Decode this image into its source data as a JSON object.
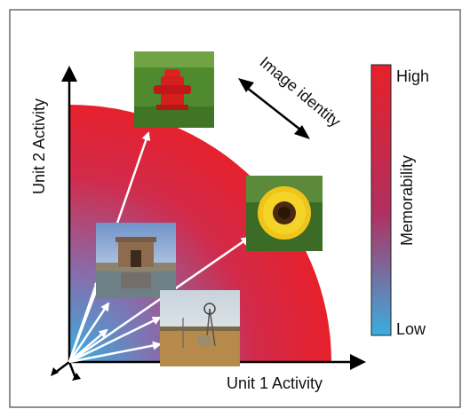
{
  "axes": {
    "x_label": "Unit 1 Activity",
    "y_label": "Unit 2 Activity"
  },
  "annotation": {
    "identity_label": "Image identity"
  },
  "colorbar": {
    "title": "Memorability",
    "high_label": "High",
    "low_label": "Low",
    "high_color": "#e8202a",
    "low_color": "#3aaee0"
  },
  "photos": [
    {
      "name": "fire-hydrant-photo",
      "subject": "red fire hydrant on grass"
    },
    {
      "name": "sunflower-photo",
      "subject": "sunflower"
    },
    {
      "name": "monument-pool-photo",
      "subject": "stone monument with reflecting pool"
    },
    {
      "name": "windmill-field-photo",
      "subject": "windmill in dry field"
    }
  ]
}
